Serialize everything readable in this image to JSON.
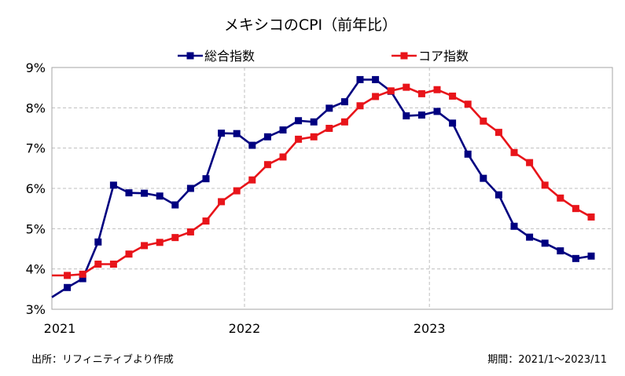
{
  "chart_data": {
    "type": "line",
    "title": "メキシコのCPI（前年比）",
    "x_start": "2021-01",
    "x_end": "2023-11",
    "x_tick_labels": [
      "2021",
      "2022",
      "2023"
    ],
    "y_tick_labels": [
      "3%",
      "4%",
      "5%",
      "6%",
      "7%",
      "8%",
      "9%"
    ],
    "ylim": [
      3,
      9
    ],
    "grid": true,
    "legend_position": "top",
    "series": [
      {
        "name": "総合指数",
        "color": "#000080",
        "values": [
          3.54,
          3.76,
          4.67,
          6.08,
          5.89,
          5.88,
          5.81,
          5.59,
          6.0,
          6.24,
          7.37,
          7.36,
          7.07,
          7.28,
          7.45,
          7.68,
          7.65,
          7.99,
          8.15,
          8.7,
          8.7,
          8.41,
          7.8,
          7.82,
          7.91,
          7.62,
          6.85,
          6.25,
          5.84,
          5.06,
          4.79,
          4.64,
          4.45,
          4.26,
          4.32
        ]
      },
      {
        "name": "コア指数",
        "color": "#e8141a",
        "values": [
          3.84,
          3.87,
          4.12,
          4.12,
          4.37,
          4.58,
          4.66,
          4.78,
          4.92,
          5.19,
          5.67,
          5.94,
          6.21,
          6.59,
          6.78,
          7.22,
          7.28,
          7.49,
          7.65,
          8.05,
          8.28,
          8.42,
          8.51,
          8.35,
          8.45,
          8.29,
          8.09,
          7.67,
          7.39,
          6.89,
          6.64,
          6.08,
          5.76,
          5.5,
          5.29
        ]
      }
    ]
  },
  "footer": {
    "source": "出所：リフィニティブより作成",
    "period": "期間：2021/1～2023/11"
  }
}
